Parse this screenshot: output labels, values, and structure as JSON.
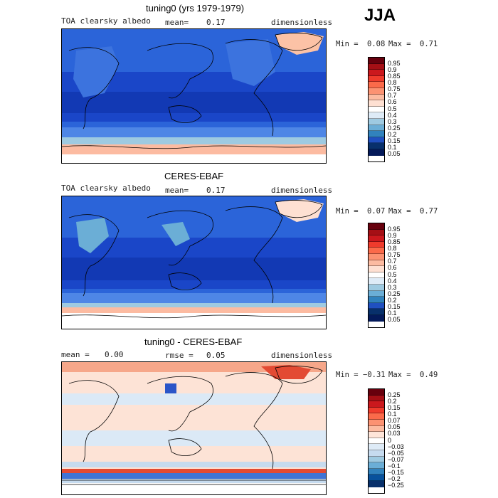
{
  "season_label": "JJA",
  "panels": [
    {
      "title": "tuning0 (yrs 1979-1979)",
      "variable": "TOA clearsky albedo",
      "stat_label": "mean=",
      "stat_value": "0.17",
      "units": "dimensionless",
      "min_label": "Min =",
      "min_value": "0.08",
      "max_label": "Max =",
      "max_value": "0.71",
      "colorbar_ticks": [
        "0.95",
        "0.9",
        "0.85",
        "0.8",
        "0.75",
        "0.7",
        "0.6",
        "0.5",
        "0.4",
        "0.3",
        "0.25",
        "0.2",
        "0.15",
        "0.1",
        "0.05"
      ]
    },
    {
      "title": "CERES-EBAF",
      "variable": "TOA clearsky albedo",
      "stat_label": "mean=",
      "stat_value": "0.17",
      "units": "dimensionless",
      "min_label": "Min =",
      "min_value": "0.07",
      "max_label": "Max =",
      "max_value": "0.77",
      "colorbar_ticks": [
        "0.95",
        "0.9",
        "0.85",
        "0.8",
        "0.75",
        "0.7",
        "0.6",
        "0.5",
        "0.4",
        "0.3",
        "0.25",
        "0.2",
        "0.15",
        "0.1",
        "0.05"
      ]
    },
    {
      "title": "tuning0 - CERES-EBAF",
      "mean_label": "mean =",
      "mean_value": "0.00",
      "rmse_label": "rmse =",
      "rmse_value": "0.05",
      "units": "dimensionless",
      "min_label": "Min =",
      "min_value": "−0.31",
      "max_label": "Max =",
      "max_value": "0.49",
      "colorbar_ticks": [
        "0.25",
        "0.2",
        "0.15",
        "0.1",
        "0.07",
        "0.05",
        "0.03",
        "0",
        "−0.03",
        "−0.05",
        "−0.07",
        "−0.1",
        "−0.15",
        "−0.2",
        "−0.25"
      ]
    }
  ],
  "colors": {
    "albedo_scale": [
      "#67000d",
      "#a50f15",
      "#cb181d",
      "#ef3b2c",
      "#fb6a4a",
      "#fc9272",
      "#fcbba1",
      "#fee0d2",
      "#ffffff",
      "#deebf7",
      "#9ecae1",
      "#6baed6",
      "#3182bd",
      "#2050c0",
      "#08306b",
      "#041a5a"
    ],
    "diff_scale": [
      "#67000d",
      "#a50f15",
      "#cb181d",
      "#ef3b2c",
      "#fb6a4a",
      "#fc9272",
      "#fcbba1",
      "#fee5d9",
      "#ffffff",
      "#deebf7",
      "#c6dbef",
      "#9ecae1",
      "#6baed6",
      "#3182bd",
      "#08519c",
      "#08306b"
    ]
  }
}
